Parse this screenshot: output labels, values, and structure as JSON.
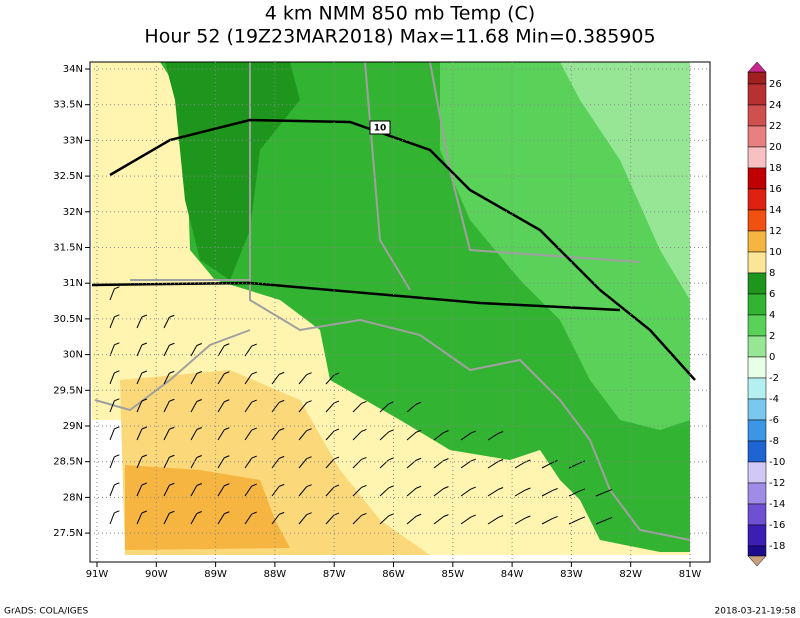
{
  "header": {
    "title": "4 km NMM 850 mb Temp (C)",
    "subtitle": "Hour 52 (19Z23MAR2018) Max=11.68 Min=0.385905"
  },
  "map": {
    "lon_labels": [
      "91W",
      "90W",
      "89W",
      "88W",
      "87W",
      "86W",
      "85W",
      "84W",
      "83W",
      "82W",
      "81W"
    ],
    "lat_labels": [
      "34N",
      "33.5N",
      "33N",
      "32.5N",
      "32N",
      "31.5N",
      "31N",
      "30.5N",
      "30N",
      "29.5N",
      "29N",
      "28.5N",
      "28N",
      "27.5N"
    ],
    "highway_label": "10"
  },
  "colorbar": {
    "labels": [
      "26",
      "24",
      "22",
      "20",
      "18",
      "16",
      "14",
      "12",
      "10",
      "8",
      "6",
      "4",
      "2",
      "0",
      "-2",
      "-4",
      "-6",
      "-8",
      "-10",
      "-12",
      "-14",
      "-16",
      "-18"
    ],
    "colors": [
      "#a02020",
      "#b83030",
      "#d05050",
      "#e88080",
      "#f8c0c0",
      "#c00000",
      "#e02010",
      "#f05010",
      "#f6b540",
      "#fae696",
      "#1e961e",
      "#32b432",
      "#5ad25a",
      "#96e696",
      "#e6ffe6",
      "#b4f0f0",
      "#78c8f0",
      "#3c96e6",
      "#1e64d2",
      "#d2c8f5",
      "#a08ce6",
      "#6e50d2",
      "#3c1eb4",
      "#1e0a8c"
    ],
    "top_color": "#c8288c",
    "bottom_color": "#c8a080"
  },
  "footer": {
    "left": "GrADS: COLA/IGES",
    "right": "2018-03-21-19:58"
  }
}
